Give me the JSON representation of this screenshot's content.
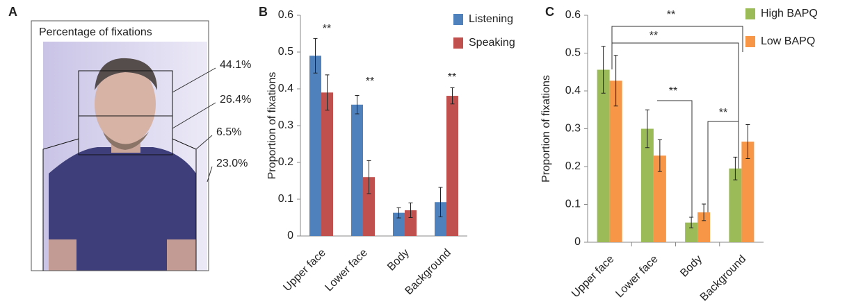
{
  "chart_data": [
    {
      "type": "annotated-image",
      "panel": "A",
      "title": "Percentage of fixations",
      "values": [
        44.1,
        26.4,
        6.5,
        23.0
      ],
      "value_labels": [
        "44.1%",
        "26.4%",
        "6.5%",
        "23.0%"
      ]
    },
    {
      "type": "bar",
      "panel": "B",
      "ylabel": "Proportion of fixations",
      "categories": [
        "Upper face",
        "Lower face",
        "Body",
        "Background"
      ],
      "series": [
        {
          "name": "Listening",
          "color": "#4f81bd",
          "values": [
            0.49,
            0.357,
            0.063,
            0.092
          ],
          "errors": [
            0.047,
            0.025,
            0.014,
            0.04
          ]
        },
        {
          "name": "Speaking",
          "color": "#c0504d",
          "values": [
            0.39,
            0.16,
            0.07,
            0.381
          ],
          "errors": [
            0.048,
            0.045,
            0.02,
            0.022
          ]
        }
      ],
      "ylim": [
        0,
        0.6
      ],
      "yticks": [
        0,
        0.1,
        0.2,
        0.3,
        0.4,
        0.5,
        0.6
      ],
      "annotations": [
        "**",
        "**",
        "**"
      ]
    },
    {
      "type": "bar",
      "panel": "C",
      "ylabel": "Proportion of fixations",
      "categories": [
        "Upper face",
        "Lower face",
        "Body",
        "Background"
      ],
      "series": [
        {
          "name": "High BAPQ",
          "color": "#9bbb59",
          "values": [
            0.456,
            0.3,
            0.052,
            0.195
          ],
          "errors": [
            0.062,
            0.05,
            0.014,
            0.03
          ]
        },
        {
          "name": "Low BAPQ",
          "color": "#f79646",
          "values": [
            0.427,
            0.229,
            0.079,
            0.266
          ],
          "errors": [
            0.067,
            0.042,
            0.022,
            0.045
          ]
        }
      ],
      "ylim": [
        0,
        0.6
      ],
      "yticks": [
        0,
        0.1,
        0.2,
        0.3,
        0.4,
        0.5,
        0.6
      ],
      "annotations": [
        "**",
        "**",
        "**",
        "**"
      ]
    }
  ]
}
